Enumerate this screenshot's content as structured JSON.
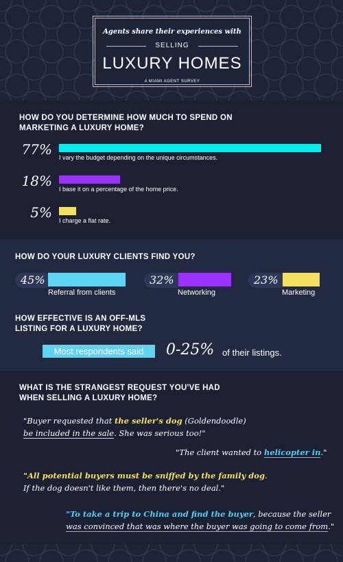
{
  "header": {
    "pre": "Agents share their experiences with",
    "mid": "SELLING",
    "main": "LUXURY HOMES",
    "foot": "A MIAMI AGENT SURVEY"
  },
  "colors": {
    "cyan": "#00f0f0",
    "purple": "#9b30ff",
    "yellow": "#f2e15c",
    "lightblue": "#5fd4f2",
    "background": "#1a2035"
  },
  "chart_data": [
    {
      "type": "bar",
      "title": "HOW DO YOU DETERMINE HOW MUCH TO SPEND ON MARKETING A LUXURY HOME?",
      "categories": [
        "I vary the budget depending on the unique circumstances.",
        "I base it on a percentage of the home price.",
        "I charge a flat rate."
      ],
      "values": [
        77,
        18,
        5
      ],
      "value_labels": [
        "77%",
        "18%",
        "5%"
      ],
      "colors": [
        "#00f0f0",
        "#9b30ff",
        "#f2e15c"
      ]
    },
    {
      "type": "bar",
      "title": "HOW DO YOUR LUXURY CLIENTS FIND YOU?",
      "categories": [
        "Referral from clients",
        "Networking",
        "Marketing"
      ],
      "values": [
        45,
        32,
        23
      ],
      "value_labels": [
        "45%",
        "32%",
        "23%"
      ],
      "colors": [
        "#5fd4f2",
        "#9b30ff",
        "#f2e15c"
      ]
    }
  ],
  "q3": {
    "title_line1": "HOW EFFECTIVE IS AN OFF-MLS",
    "title_line2": "LISTING FOR A LUXURY HOME?",
    "highlight": "Most respondents said",
    "value": "0-25%",
    "tail": "of their listings."
  },
  "q4": {
    "title_line1": "WHAT IS THE STRANGEST REQUEST YOU'VE HAD",
    "title_line2": "WHEN SELLING A LUXURY HOME?",
    "quotes": {
      "q1a": "\"Buyer requested that ",
      "q1b": "the seller's dog",
      "q1c": " (Goldendoodle)",
      "q1d": "be included in the sale",
      "q1e": ". She was serious too!\"",
      "q2a": "\"The client wanted to ",
      "q2b": "helicopter in",
      "q2c": ".\"",
      "q3a": "\"All potential buyers must be sniffed by the family dog",
      "q3b": ".",
      "q3c": "If the dog doesn't like them, then there's no deal.\"",
      "q4a": "\"To take a trip to China and find the buyer",
      "q4b": ", because the seller",
      "q4c": "was convinced that was where the buyer was going to come from",
      "q4d": ".\""
    }
  }
}
